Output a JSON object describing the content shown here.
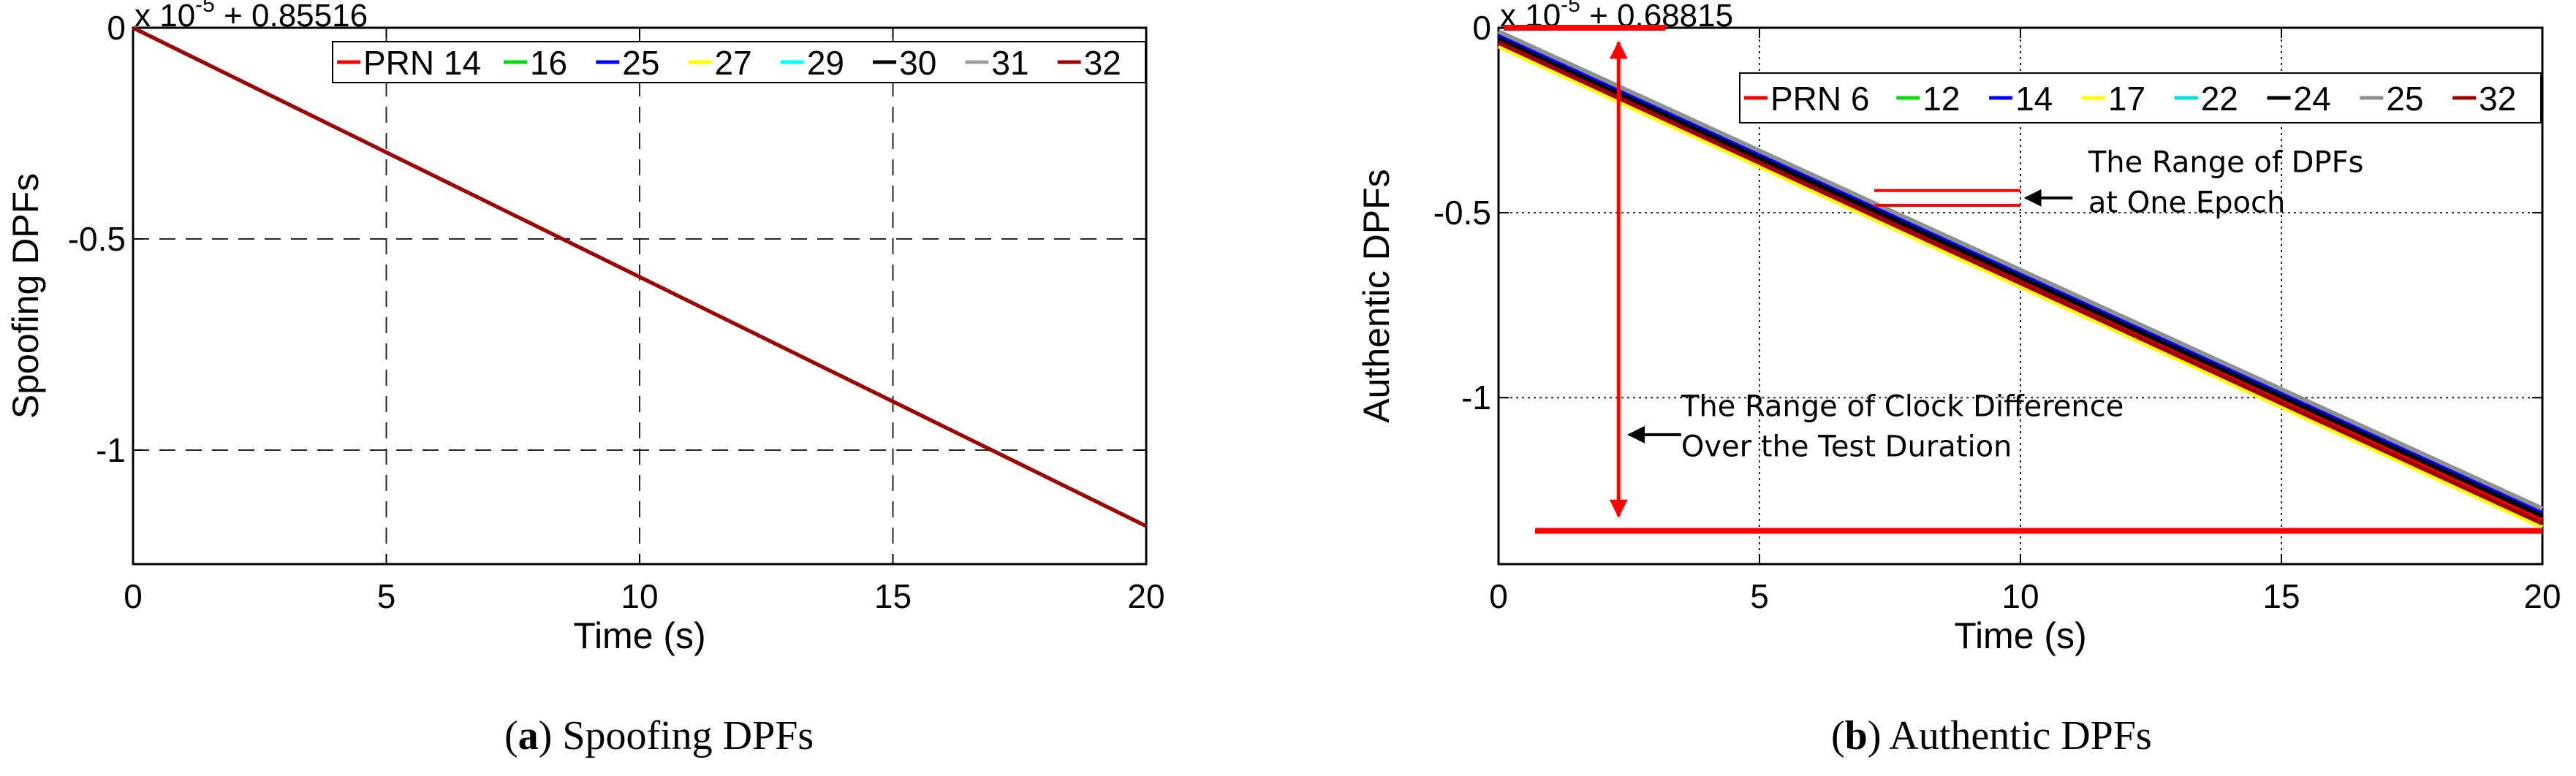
{
  "colors": {
    "axis": "#000000",
    "grid": "#000000",
    "annotation_red": "#ff0000",
    "legend_border": "#000000"
  },
  "panels": [
    {
      "caption_letter": "a",
      "caption_text": "Spoofing DPFs"
    },
    {
      "caption_letter": "b",
      "caption_text": "Authentic DPFs"
    }
  ],
  "chart_data": [
    {
      "type": "line",
      "xlabel": "Time (s)",
      "ylabel": "Spoofing DPFs",
      "axis_multiplier": "x 10",
      "axis_multiplier_exp": "-5",
      "axis_offset": "+ 0.85516",
      "xlim": [
        0,
        20
      ],
      "ylim": [
        -1.27,
        0
      ],
      "xticks": [
        0,
        5,
        10,
        15,
        20
      ],
      "xtick_labels": [
        "0",
        "5",
        "10",
        "15",
        "20"
      ],
      "yticks": [
        0,
        -0.5,
        -1
      ],
      "ytick_labels": [
        "0",
        "-0.5",
        "-1"
      ],
      "grid": "dashed",
      "legend_placement": "top-right",
      "legend_prefix": "PRN",
      "series": [
        {
          "name": "14",
          "color": "#ff0000",
          "x": [
            0,
            20
          ],
          "y": [
            0,
            -1.18
          ]
        },
        {
          "name": "16",
          "color": "#00dd00",
          "x": [
            0,
            20
          ],
          "y": [
            0,
            -1.18
          ]
        },
        {
          "name": "25",
          "color": "#0000ff",
          "x": [
            0,
            20
          ],
          "y": [
            0,
            -1.18
          ]
        },
        {
          "name": "27",
          "color": "#ffff00",
          "x": [
            0,
            20
          ],
          "y": [
            0,
            -1.18
          ]
        },
        {
          "name": "29",
          "color": "#00ffff",
          "x": [
            0,
            20
          ],
          "y": [
            0,
            -1.18
          ]
        },
        {
          "name": "30",
          "color": "#000000",
          "x": [
            0,
            20
          ],
          "y": [
            0,
            -1.18
          ]
        },
        {
          "name": "31",
          "color": "#a0a0a0",
          "x": [
            0,
            20
          ],
          "y": [
            0,
            -1.18
          ]
        },
        {
          "name": "32",
          "color": "#a00000",
          "x": [
            0,
            20
          ],
          "y": [
            0,
            -1.18
          ]
        }
      ]
    },
    {
      "type": "line",
      "xlabel": "Time (s)",
      "ylabel": "Authentic DPFs",
      "axis_multiplier": "x 10",
      "axis_multiplier_exp": "-5",
      "axis_offset": "+ 0.68815",
      "xlim": [
        0,
        20
      ],
      "ylim": [
        -1.45,
        0
      ],
      "xticks": [
        0,
        5,
        10,
        15,
        20
      ],
      "xtick_labels": [
        "0",
        "5",
        "10",
        "15",
        "20"
      ],
      "yticks": [
        0,
        -0.5,
        -1
      ],
      "ytick_labels": [
        "0",
        "-0.5",
        "-1"
      ],
      "grid": "dotted",
      "legend_placement": "top-right",
      "legend_prefix": "PRN",
      "series": [
        {
          "name": "6",
          "color": "#ff0000",
          "x": [
            0,
            20
          ],
          "y": [
            -0.03,
            -1.33
          ]
        },
        {
          "name": "12",
          "color": "#00dd00",
          "x": [
            0,
            20
          ],
          "y": [
            -0.02,
            -1.32
          ]
        },
        {
          "name": "14",
          "color": "#0000ff",
          "x": [
            0,
            20
          ],
          "y": [
            -0.02,
            -1.31
          ]
        },
        {
          "name": "17",
          "color": "#ffff00",
          "x": [
            0,
            20
          ],
          "y": [
            -0.05,
            -1.35
          ]
        },
        {
          "name": "22",
          "color": "#00e0e0",
          "x": [
            0,
            20
          ],
          "y": [
            -0.01,
            -1.3
          ]
        },
        {
          "name": "24",
          "color": "#000000",
          "x": [
            0,
            20
          ],
          "y": [
            -0.03,
            -1.32
          ]
        },
        {
          "name": "25",
          "color": "#909090",
          "x": [
            0,
            20
          ],
          "y": [
            -0.01,
            -1.3
          ]
        },
        {
          "name": "32",
          "color": "#a00000",
          "x": [
            0,
            20
          ],
          "y": [
            -0.04,
            -1.34
          ]
        }
      ],
      "annotations": [
        {
          "text": [
            "The Range of DPFs",
            "at One Epoch"
          ],
          "target_x": 10,
          "target_y": [
            -0.44,
            -0.48
          ]
        },
        {
          "text": [
            "The Range of Clock Difference",
            "Over the Test Duration"
          ],
          "target_x": 2.3,
          "target_y": [
            0,
            -1.36
          ]
        }
      ]
    }
  ]
}
